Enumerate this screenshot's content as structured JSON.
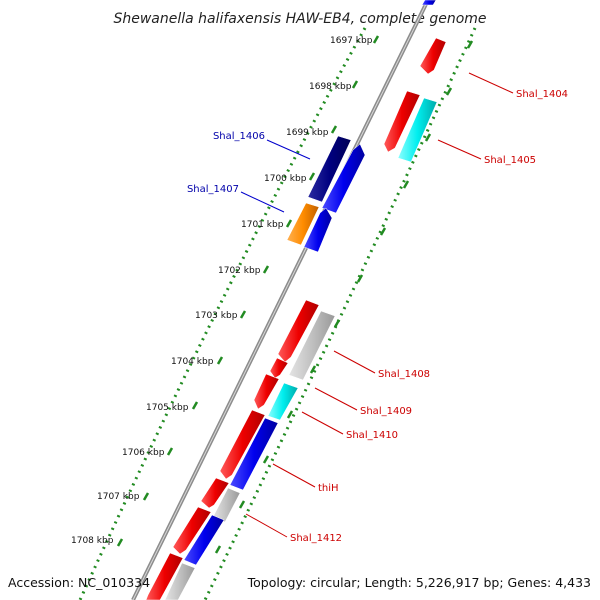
{
  "title": "Shewanella halifaxensis HAW-EB4, complete genome",
  "footer": {
    "accession": "Accession: NC_010334",
    "summary": "Topology: circular; Length: 5,226,917 bp; Genes: 4,433"
  },
  "ticks": [
    "1697 kbp",
    "1698 kbp",
    "1699 kbp",
    "1700 kbp",
    "1701 kbp",
    "1702 kbp",
    "1703 kbp",
    "1704 kbp",
    "1705 kbp",
    "1706 kbp",
    "1707 kbp",
    "1708 kbp"
  ],
  "gene_labels": [
    {
      "text": "Shal_1404",
      "color": "#cc0000"
    },
    {
      "text": "Shal_1405",
      "color": "#cc0000"
    },
    {
      "text": "Shal_1406",
      "color": "#0000aa"
    },
    {
      "text": "Shal_1407",
      "color": "#0000aa"
    },
    {
      "text": "Shal_1408",
      "color": "#cc0000"
    },
    {
      "text": "Shal_1409",
      "color": "#cc0000"
    },
    {
      "text": "Shal_1410",
      "color": "#cc0000"
    },
    {
      "text": "thiH",
      "color": "#cc0000"
    },
    {
      "text": "Shal_1412",
      "color": "#cc0000"
    }
  ],
  "colors": {
    "backbone": "#8c8c8c",
    "dotted_ring": "#228b22",
    "red": "#ee0000",
    "blue": "#0000ee",
    "navy": "#000080",
    "cyan": "#00eeee",
    "orange": "#ff8c00",
    "gray": "#c0c0c0"
  }
}
